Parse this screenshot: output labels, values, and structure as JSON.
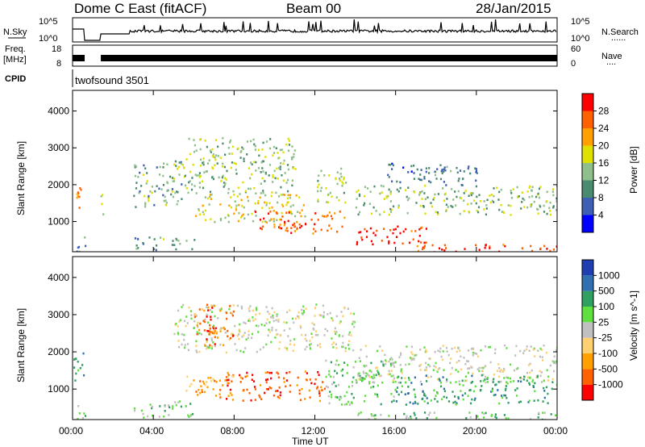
{
  "header": {
    "title": "Dome C East (fitACF)",
    "beam": "Beam 00",
    "date": "28/Jan/2015"
  },
  "side_labels": {
    "nsky": "N.Sky",
    "freq_line1": "Freq.",
    "freq_line2": "[MHz]",
    "cpid": "CPID",
    "nsearch": "N.Search",
    "nave": "Nave",
    "dots1": "......",
    "dots2": "...."
  },
  "noise_axis": {
    "left_top": "10^5",
    "left_bottom": "10^0",
    "right_top": "10^5",
    "right_bottom": "10^0"
  },
  "freq_axis": {
    "left_top": "18",
    "left_bottom": "8",
    "right_top": "60",
    "right_bottom": "0"
  },
  "cpid_text": "twofsound 3501",
  "x_axis": {
    "label": "Time UT",
    "ticks": [
      "00:00",
      "04:00",
      "08:00",
      "12:00",
      "16:00",
      "20:00",
      "00:00"
    ],
    "hours": [
      0,
      4,
      8,
      12,
      16,
      20,
      24
    ]
  },
  "colors": {
    "power": [
      "#0000ff",
      "#3f5fb4",
      "#4a8a6e",
      "#8fbf8b",
      "#e0e000",
      "#ffa000",
      "#ff6000",
      "#ff0000"
    ],
    "velocity": [
      "#ff0000",
      "#ff6000",
      "#ffa000",
      "#ffd070",
      "#c0c0c0",
      "#60e040",
      "#30a060",
      "#3070b0",
      "#1f3fb0"
    ]
  },
  "chart_data": [
    {
      "type": "heatmap",
      "panel": "power",
      "ylabel": "Slant Range [km]",
      "yticks": [
        1000,
        2000,
        3000,
        4000
      ],
      "ylim": [
        180,
        4560
      ],
      "xlim": [
        0,
        24
      ],
      "colorbar": {
        "label": "Power [dB]",
        "ticks": [
          "4",
          "8",
          "12",
          "16",
          "20",
          "24",
          "28"
        ],
        "range": [
          0,
          32
        ]
      },
      "regions": [
        {
          "t0": 0.0,
          "t1": 0.6,
          "r0": 1400,
          "r1": 2000,
          "v": 22
        },
        {
          "t0": 0.0,
          "t1": 0.6,
          "r0": 200,
          "r1": 600,
          "v": 8
        },
        {
          "t0": 1.3,
          "t1": 1.5,
          "r0": 1000,
          "r1": 1800,
          "v": 16
        },
        {
          "t0": 3.0,
          "t1": 5.5,
          "r0": 1400,
          "r1": 2700,
          "v": 12
        },
        {
          "t0": 3.0,
          "t1": 6.0,
          "r0": 250,
          "r1": 600,
          "v": 12
        },
        {
          "t0": 5.5,
          "t1": 11.0,
          "r0": 1800,
          "r1": 3300,
          "v": 14
        },
        {
          "t0": 6.0,
          "t1": 11.5,
          "r0": 1000,
          "r1": 1800,
          "v": 18
        },
        {
          "t0": 9.0,
          "t1": 13.5,
          "r0": 700,
          "r1": 1300,
          "v": 26
        },
        {
          "t0": 12.0,
          "t1": 13.5,
          "r0": 1500,
          "r1": 2500,
          "v": 16
        },
        {
          "t0": 14.0,
          "t1": 17.5,
          "r0": 400,
          "r1": 900,
          "v": 28
        },
        {
          "t0": 14.0,
          "t1": 24.0,
          "r0": 1200,
          "r1": 2000,
          "v": 14
        },
        {
          "t0": 17.0,
          "t1": 24.0,
          "r0": 180,
          "r1": 400,
          "v": 28
        },
        {
          "t0": 15.5,
          "t1": 20.0,
          "r0": 2000,
          "r1": 2600,
          "v": 8
        }
      ]
    },
    {
      "type": "heatmap",
      "panel": "velocity",
      "ylabel": "Slant Range [km]",
      "yticks": [
        1000,
        2000,
        3000,
        4000
      ],
      "ylim": [
        180,
        4560
      ],
      "xlim": [
        0,
        24
      ],
      "colorbar": {
        "label": "Velocity [m s^-1]",
        "ticks": [
          "1000",
          "500",
          "100",
          "25",
          "-25",
          "-100",
          "-500",
          "-1000"
        ]
      },
      "regions": [
        {
          "t0": 0.0,
          "t1": 0.6,
          "r0": 1200,
          "r1": 2000,
          "v": 6
        },
        {
          "t0": 0.0,
          "t1": 0.6,
          "r0": 200,
          "r1": 600,
          "v": 5
        },
        {
          "t0": 3.0,
          "t1": 6.0,
          "r0": 250,
          "r1": 700,
          "v": 5
        },
        {
          "t0": 5.0,
          "t1": 14.0,
          "r0": 2000,
          "r1": 3300,
          "v": 4
        },
        {
          "t0": 6.0,
          "t1": 8.0,
          "r0": 2200,
          "r1": 3300,
          "v": 1
        },
        {
          "t0": 7.5,
          "t1": 12.5,
          "r0": 700,
          "r1": 1500,
          "v": 1
        },
        {
          "t0": 5.5,
          "t1": 8.0,
          "r0": 800,
          "r1": 1400,
          "v": 2
        },
        {
          "t0": 12.5,
          "t1": 16.0,
          "r0": 600,
          "r1": 1800,
          "v": 5
        },
        {
          "t0": 14.0,
          "t1": 24.0,
          "r0": 1200,
          "r1": 2200,
          "v": 4
        },
        {
          "t0": 16.0,
          "t1": 24.0,
          "r0": 600,
          "r1": 1400,
          "v": 6
        },
        {
          "t0": 14.0,
          "t1": 24.0,
          "r0": 180,
          "r1": 400,
          "v": 5
        }
      ]
    }
  ]
}
